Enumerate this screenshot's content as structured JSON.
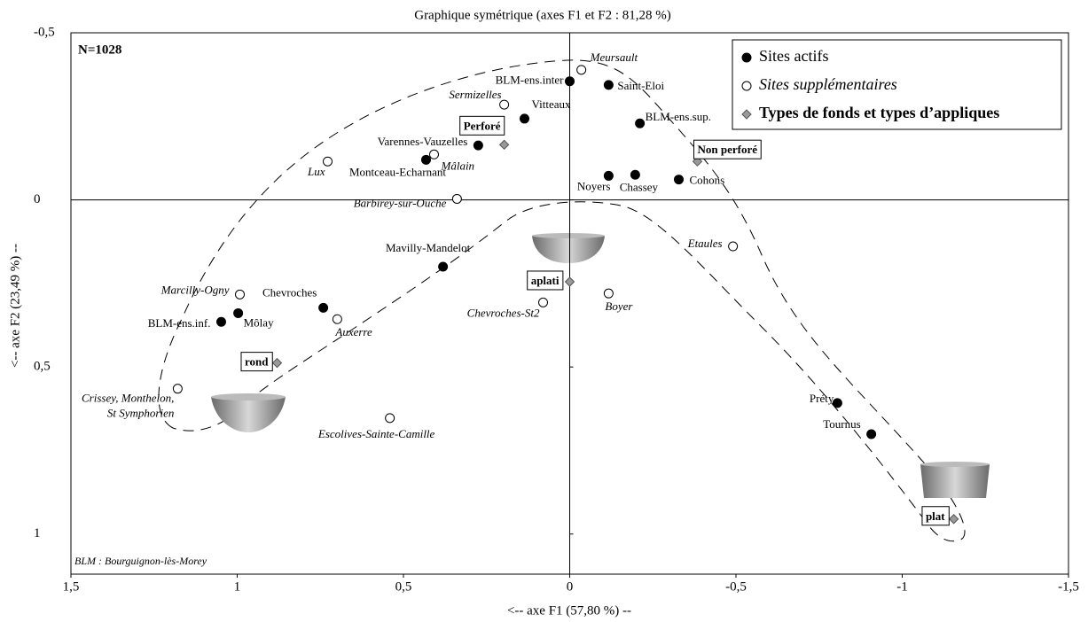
{
  "chart_data": {
    "type": "scatter",
    "title": "Graphique symétrique (axes F1 et F2 : 81,28 %)",
    "xlabel": "<-- axe F1 (57,80 %) --",
    "ylabel": "<-- axe F2 (23,49 %) --",
    "annotation": "N=1028",
    "note": "BLM : Bourguignon-lès-Morey",
    "xlim": [
      1.5,
      -1.5
    ],
    "ylim": [
      -0.5,
      1.12
    ],
    "xticks": [
      {
        "value": 1.5,
        "label": "1,5"
      },
      1,
      {
        "value": 0.5,
        "label": "0,5"
      },
      0,
      {
        "value": -0.5,
        "label": "-0,5"
      },
      -1,
      {
        "value": -1.5,
        "label": "-1,5"
      }
    ],
    "yticks": [
      {
        "value": -0.5,
        "label": "-0,5"
      },
      0,
      {
        "value": 0.5,
        "label": "0,5"
      },
      1
    ],
    "series": [
      {
        "name": "Sites actifs",
        "color": "#000000",
        "marker": "filled-circle",
        "labels": [
          "BLM-ens.inter",
          "Saint-Eloi",
          "Vitteaux",
          "BLM-ens.sup.",
          "Varennes-Vauzelles",
          "Montceau-Echarnant",
          "Noyers",
          "Chassey",
          "Cohons",
          "Mavilly-Mandelot",
          "Chevroches",
          "Môlay",
          "BLM-ens.inf.",
          "Préty",
          "Tournus"
        ],
        "x": [
          0,
          -0.117,
          0.136,
          -0.211,
          0.275,
          0.432,
          -0.117,
          -0.197,
          -0.328,
          0.381,
          0.741,
          0.997,
          1.048,
          -0.805,
          -0.907
        ],
        "values": [
          -0.355,
          -0.344,
          -0.243,
          -0.229,
          -0.163,
          -0.12,
          -0.072,
          -0.075,
          -0.061,
          0.2,
          0.323,
          0.339,
          0.365,
          0.608,
          0.701
        ]
      },
      {
        "name": "Sites supplémentaires",
        "color": "#000000",
        "marker": "open-circle",
        "labels": [
          "Meursault",
          "Sermizelles",
          "Mâlain",
          "Lux",
          "Barbirey-sur-Ouche",
          "Etaules",
          "Marcilly-Ogny",
          "Auxerre",
          "Chevroches-St2",
          "Boyer",
          "Crissey, Monthelon,\nSt Symphorien",
          "Escolives-Sainte-Camille"
        ],
        "x": [
          -0.035,
          0.197,
          0.408,
          0.728,
          0.339,
          -0.491,
          0.992,
          0.699,
          0.08,
          -0.117,
          1.179,
          0.541
        ],
        "values": [
          -0.389,
          -0.285,
          -0.136,
          -0.115,
          -0.003,
          0.139,
          0.283,
          0.357,
          0.307,
          0.28,
          0.565,
          0.653
        ]
      },
      {
        "name": "Types de fonds et types d’appliques",
        "color": "#999999",
        "marker": "diamond",
        "labels": [
          "Perforé",
          "Non perforé",
          "aplati",
          "rond",
          "plat"
        ],
        "x": [
          0.197,
          -0.384,
          0,
          0.88,
          -1.155
        ],
        "values": [
          -0.165,
          -0.115,
          0.245,
          0.488,
          0.955
        ]
      }
    ]
  }
}
